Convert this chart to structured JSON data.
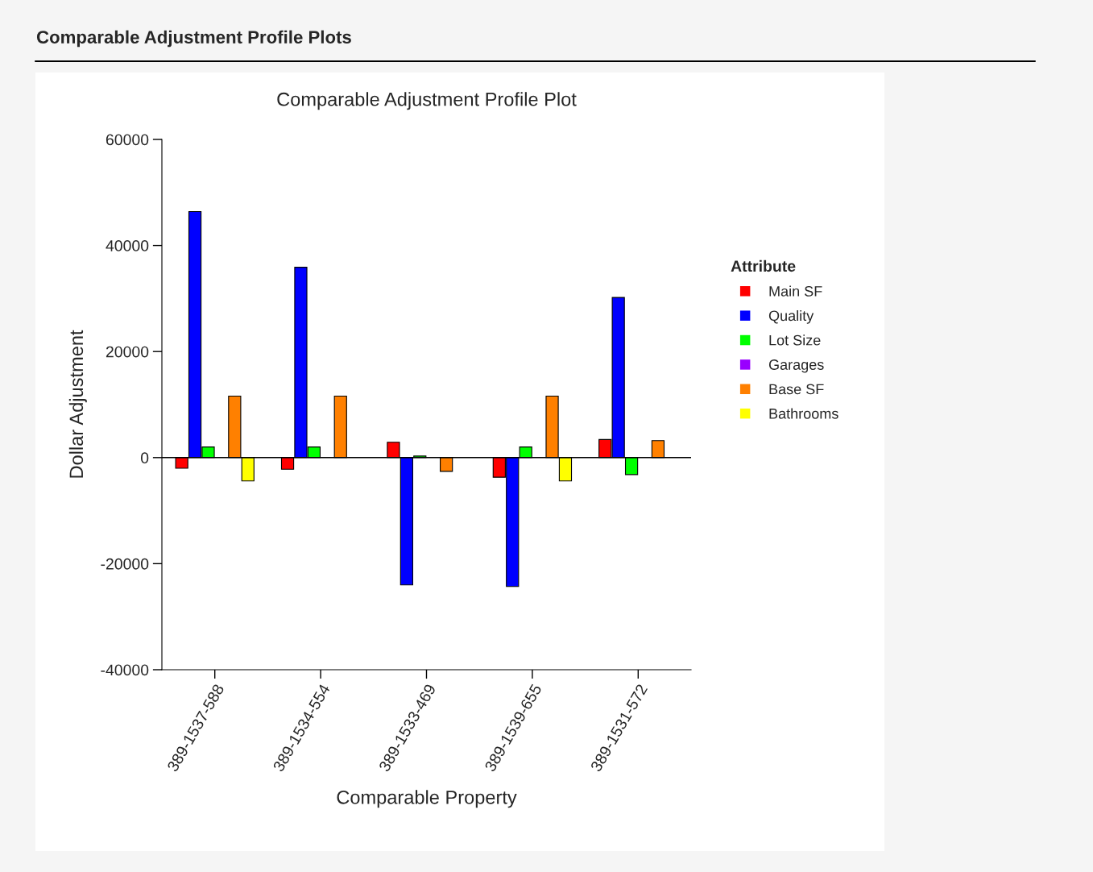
{
  "chart_data": {
    "type": "bar",
    "title": "Comparable Adjustment Profile Plot",
    "xlabel": "Comparable Property",
    "ylabel": "Dollar Adjustment",
    "legend_title": "Attribute",
    "annotations": [
      "Comparable Adjustment Profile Plots"
    ],
    "categories": [
      "389-1537-588",
      "389-1534-554",
      "389-1533-469",
      "389-1539-655",
      "389-1531-572"
    ],
    "series": [
      {
        "name": "Main SF",
        "color": "#ff0000",
        "values": [
          -2000,
          -2200,
          2900,
          -3700,
          3400
        ]
      },
      {
        "name": "Quality",
        "color": "#0000ff",
        "values": [
          46400,
          35900,
          -24000,
          -24300,
          30200
        ]
      },
      {
        "name": "Lot Size",
        "color": "#00ff00",
        "values": [
          2000,
          2000,
          300,
          2000,
          -3200
        ]
      },
      {
        "name": "Garages",
        "color": "#9900ff",
        "values": [
          null,
          null,
          null,
          null,
          null
        ]
      },
      {
        "name": "Base SF",
        "color": "#ff8000",
        "values": [
          11600,
          11600,
          -2600,
          11600,
          3200
        ]
      },
      {
        "name": "Bathrooms",
        "color": "#ffff00",
        "values": [
          -4400,
          null,
          null,
          -4400,
          null
        ]
      }
    ],
    "ylim": [
      -40000,
      60000
    ],
    "yticks": [
      -40000,
      -20000,
      0,
      20000,
      40000,
      60000
    ],
    "ref_lines": [
      {
        "axis": "y",
        "value": 0,
        "color": "#000000"
      }
    ],
    "grid": false,
    "legend": "right"
  }
}
